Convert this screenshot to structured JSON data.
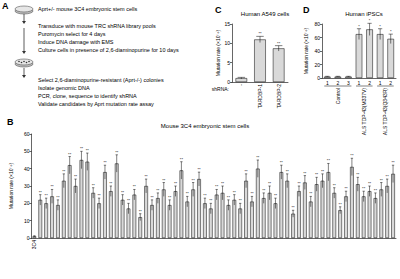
{
  "diagram": {
    "panel": "A",
    "steps": [
      "Aprt+/- mouse 3C4 embryonic stem cells",
      "Transduce with mouse TRC shRNA library pools",
      "Puromycin select for 4 days",
      "Induce DNA damage with EMS",
      "Culture cells in presence of 2,6-diaminopurine for 10 days",
      "Select 2,6-diaminopurine-resistant (Aprt-/-) colonies",
      "Isolate genomic DNA",
      "PCR, clone, sequence to identify shRNA",
      "Validate candidates by Aprt mutation rate assay"
    ]
  },
  "chart_data": [
    {
      "type": "bar",
      "panel": "B",
      "title": "Mouse 3C4 embryonic stem cells",
      "y_label": "Mutation rate (×10⁻⁶)",
      "color": "#d9d9d9",
      "categories": [
        "3C4",
        null,
        null,
        null,
        null,
        null,
        null,
        null,
        null,
        null,
        null,
        null,
        null,
        null,
        null,
        null,
        null,
        null,
        null,
        null,
        null,
        null,
        null,
        null,
        null,
        null,
        null,
        null,
        null,
        null,
        null,
        null,
        null,
        null,
        null,
        null,
        null,
        null,
        null,
        null,
        null,
        null,
        null,
        null,
        null,
        null,
        null,
        null,
        null,
        null,
        null,
        null,
        null,
        null,
        null,
        null,
        null,
        null,
        null,
        null,
        null,
        null
      ],
      "values": [
        1,
        22,
        20,
        24,
        19,
        33,
        42,
        30,
        45,
        44,
        26,
        20,
        38,
        27,
        43,
        22,
        17,
        25,
        12,
        30,
        19,
        23,
        28,
        19,
        27,
        39,
        21,
        28,
        34,
        20,
        17,
        25,
        26,
        19,
        22,
        17,
        33,
        21,
        40,
        23,
        26,
        20,
        38,
        33,
        14,
        27,
        32,
        21,
        31,
        33,
        38,
        26,
        16,
        24,
        41,
        31,
        24,
        27,
        23,
        28,
        30,
        37
      ],
      "errors": [
        0.3,
        3,
        3,
        4,
        3,
        4,
        5,
        4,
        5,
        5,
        3,
        3,
        4,
        3,
        5,
        3,
        3,
        3,
        2,
        4,
        3,
        3,
        4,
        3,
        3,
        5,
        3,
        4,
        4,
        3,
        3,
        3,
        4,
        3,
        3,
        3,
        4,
        3,
        5,
        3,
        4,
        3,
        4,
        4,
        2,
        3,
        4,
        3,
        4,
        4,
        5,
        3,
        2,
        3,
        5,
        4,
        3,
        3,
        3,
        4,
        4,
        5
      ],
      "significance": [
        null,
        "**",
        "**",
        "**",
        "**",
        "**",
        "**",
        "**",
        "**",
        "**",
        "**",
        "**",
        "**",
        "**",
        "**",
        "**",
        "**",
        "**",
        "**",
        "**",
        "**",
        "**",
        "**",
        "**",
        "**",
        "**",
        "**",
        "**",
        "**",
        "**",
        "**",
        "**",
        "**",
        "**",
        "**",
        "**",
        "**",
        "**",
        "**",
        "**",
        "**",
        "**",
        "**",
        "**",
        "**",
        "**",
        "**",
        "**",
        "**",
        "**",
        "**",
        "**",
        "**",
        "**",
        "**",
        "**",
        "**",
        "**",
        "**",
        "**",
        "**",
        "**"
      ],
      "ylim": [
        0,
        60
      ],
      "yticks": [
        0,
        10,
        20,
        30,
        40,
        50,
        60
      ],
      "grid": false
    },
    {
      "type": "bar",
      "panel": "C",
      "title": "Human A549 cells",
      "y_label": "Mutation rate (×10⁻⁶)",
      "x_label": "shRNA:",
      "color": "#d9d9d9",
      "categories": [
        "-",
        "TARDBP-1",
        "TARDBP-2"
      ],
      "values": [
        1,
        11,
        8.7
      ],
      "errors": [
        0.2,
        0.8,
        0.7
      ],
      "significance": [
        null,
        "**",
        "**"
      ],
      "ylim": [
        0,
        15
      ],
      "yticks": [
        0,
        5,
        10,
        15
      ],
      "grid": false
    },
    {
      "type": "bar",
      "panel": "D",
      "title": "Human iPSCs",
      "y_label": "Mutation rate (×10⁻⁶)",
      "color": "#d9d9d9",
      "categories": [
        "1",
        "2",
        "3",
        "1",
        "2",
        "1",
        "2"
      ],
      "values": [
        2,
        2,
        2,
        65,
        72,
        65,
        58
      ],
      "errors": [
        0.5,
        0.5,
        0.5,
        8,
        9,
        8,
        7
      ],
      "significance": [
        null,
        null,
        null,
        "*",
        "*",
        "*",
        "*"
      ],
      "groups": [
        {
          "label": "Control",
          "from": 0,
          "to": 2
        },
        {
          "label": "ALS TDP-43(M337V)",
          "from": 3,
          "to": 4
        },
        {
          "label": "ALS TDP-43(Q343R)",
          "from": 5,
          "to": 6
        }
      ],
      "ylim": [
        0,
        80
      ],
      "yticks": [
        0,
        20,
        40,
        60,
        80
      ],
      "grid": false
    }
  ]
}
